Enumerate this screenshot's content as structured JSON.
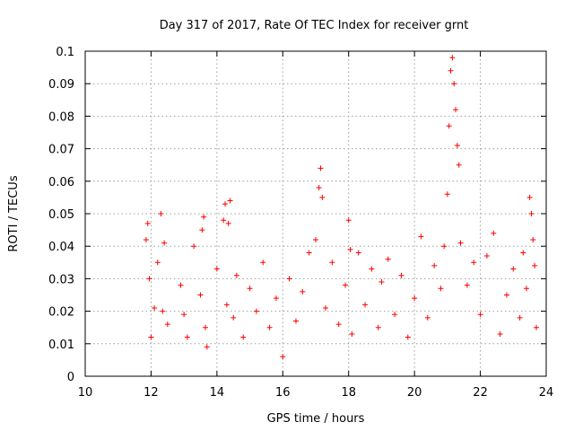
{
  "chart_data": {
    "type": "scatter",
    "title": "Day 317 of 2017, Rate Of TEC Index for receiver grnt",
    "xlabel": "GPS time / hours",
    "ylabel": "ROTI / TECUs",
    "xlim": [
      10,
      24
    ],
    "ylim": [
      0,
      0.1
    ],
    "xticks": [
      "10",
      "12",
      "14",
      "16",
      "18",
      "20",
      "22",
      "24"
    ],
    "yticks": [
      "0",
      "0.01",
      "0.02",
      "0.03",
      "0.04",
      "0.05",
      "0.06",
      "0.07",
      "0.08",
      "0.09",
      "0.1"
    ],
    "xtick_values": [
      10,
      12,
      14,
      16,
      18,
      20,
      22,
      24
    ],
    "ytick_values": [
      0,
      0.01,
      0.02,
      0.03,
      0.04,
      0.05,
      0.06,
      0.07,
      0.08,
      0.09,
      0.1
    ],
    "grid": true,
    "marker": "+",
    "color": "#ff0000",
    "series": [
      {
        "name": "ROTI",
        "x": [
          11.85,
          11.9,
          11.95,
          12.0,
          12.1,
          12.2,
          12.3,
          12.35,
          12.4,
          12.5,
          12.9,
          13.0,
          13.1,
          13.3,
          13.5,
          13.55,
          13.6,
          13.65,
          13.7,
          14.0,
          14.2,
          14.25,
          14.3,
          14.35,
          14.4,
          14.5,
          14.6,
          14.8,
          15.0,
          15.2,
          15.4,
          15.6,
          15.8,
          16.0,
          16.2,
          16.4,
          16.6,
          16.8,
          17.0,
          17.1,
          17.15,
          17.2,
          17.3,
          17.5,
          17.7,
          17.9,
          18.0,
          18.05,
          18.1,
          18.3,
          18.5,
          18.7,
          18.9,
          19.0,
          19.2,
          19.4,
          19.6,
          19.8,
          20.0,
          20.2,
          20.4,
          20.6,
          20.8,
          20.9,
          21.0,
          21.05,
          21.1,
          21.15,
          21.2,
          21.25,
          21.3,
          21.35,
          21.4,
          21.6,
          21.8,
          22.0,
          22.2,
          22.4,
          22.6,
          22.8,
          23.0,
          23.2,
          23.3,
          23.4,
          23.5,
          23.55,
          23.6,
          23.65,
          23.7
        ],
        "y": [
          0.042,
          0.047,
          0.03,
          0.012,
          0.021,
          0.035,
          0.05,
          0.02,
          0.041,
          0.016,
          0.028,
          0.019,
          0.012,
          0.04,
          0.025,
          0.045,
          0.049,
          0.015,
          0.009,
          0.033,
          0.048,
          0.053,
          0.022,
          0.047,
          0.054,
          0.018,
          0.031,
          0.012,
          0.027,
          0.02,
          0.035,
          0.015,
          0.024,
          0.006,
          0.03,
          0.017,
          0.026,
          0.038,
          0.042,
          0.058,
          0.064,
          0.055,
          0.021,
          0.035,
          0.016,
          0.028,
          0.048,
          0.039,
          0.013,
          0.038,
          0.022,
          0.033,
          0.015,
          0.029,
          0.036,
          0.019,
          0.031,
          0.012,
          0.024,
          0.043,
          0.018,
          0.034,
          0.027,
          0.04,
          0.056,
          0.077,
          0.094,
          0.098,
          0.09,
          0.082,
          0.071,
          0.065,
          0.041,
          0.028,
          0.035,
          0.019,
          0.037,
          0.044,
          0.013,
          0.025,
          0.033,
          0.018,
          0.038,
          0.027,
          0.055,
          0.05,
          0.042,
          0.034,
          0.015
        ]
      }
    ]
  }
}
